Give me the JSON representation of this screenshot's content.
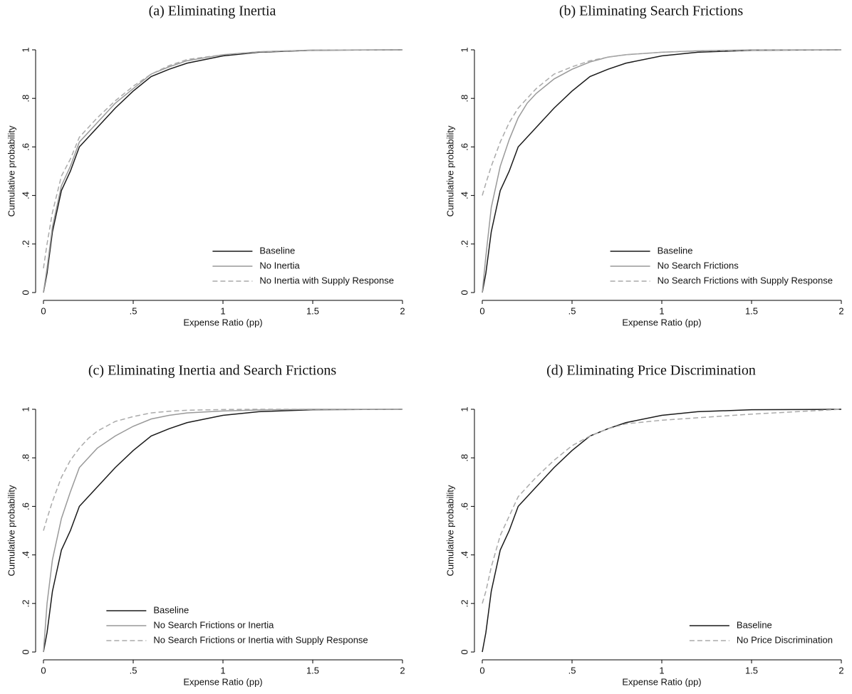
{
  "chart_data": [
    {
      "type": "line",
      "title": "(a) Eliminating Inertia",
      "x_label": "Expense Ratio (pp)",
      "y_label": "Cumulative probability",
      "x": [
        0,
        0.02,
        0.05,
        0.1,
        0.15,
        0.2,
        0.25,
        0.3,
        0.4,
        0.5,
        0.6,
        0.7,
        0.8,
        1.0,
        1.2,
        1.5,
        2.0
      ],
      "series": [
        {
          "name": "Baseline",
          "color": "#1a1a1a",
          "line_style": "solid",
          "values": [
            0,
            0.08,
            0.25,
            0.42,
            0.5,
            0.6,
            0.64,
            0.68,
            0.76,
            0.83,
            0.89,
            0.92,
            0.945,
            0.975,
            0.99,
            0.998,
            1
          ]
        },
        {
          "name": "No Inertia",
          "color": "#999999",
          "line_style": "solid",
          "values": [
            0,
            0.1,
            0.27,
            0.44,
            0.52,
            0.62,
            0.66,
            0.7,
            0.78,
            0.84,
            0.9,
            0.93,
            0.955,
            0.98,
            0.992,
            0.999,
            1
          ]
        },
        {
          "name": "No Inertia with Supply Response",
          "color": "#aaaaaa",
          "line_style": "dashed",
          "values": [
            0.1,
            0.2,
            0.33,
            0.48,
            0.55,
            0.64,
            0.68,
            0.72,
            0.79,
            0.85,
            0.9,
            0.935,
            0.96,
            0.98,
            0.992,
            0.999,
            1
          ]
        }
      ],
      "xlim": [
        0,
        2
      ],
      "xticks": [
        0,
        {
          "value": 0.5,
          "label": ".5"
        },
        1,
        1.5,
        2
      ],
      "ylim": [
        0,
        1
      ],
      "yticks": [
        0,
        {
          "value": 0.2,
          "label": ".2"
        },
        {
          "value": 0.4,
          "label": ".4"
        },
        {
          "value": 0.6,
          "label": ".6"
        },
        {
          "value": 0.8,
          "label": ".8"
        },
        1
      ],
      "legend": "lower right"
    },
    {
      "type": "line",
      "title": "(b) Eliminating Search Frictions",
      "x_label": "Expense Ratio (pp)",
      "y_label": "Cumulative probability",
      "x": [
        0,
        0.02,
        0.05,
        0.1,
        0.15,
        0.2,
        0.25,
        0.3,
        0.4,
        0.5,
        0.6,
        0.7,
        0.8,
        1.0,
        1.2,
        1.5,
        2.0
      ],
      "series": [
        {
          "name": "Baseline",
          "color": "#1a1a1a",
          "line_style": "solid",
          "values": [
            0,
            0.08,
            0.25,
            0.42,
            0.5,
            0.6,
            0.64,
            0.68,
            0.76,
            0.83,
            0.89,
            0.92,
            0.945,
            0.975,
            0.99,
            0.998,
            1
          ]
        },
        {
          "name": "No Search Frictions",
          "color": "#999999",
          "line_style": "solid",
          "values": [
            0,
            0.15,
            0.35,
            0.52,
            0.63,
            0.72,
            0.78,
            0.82,
            0.88,
            0.92,
            0.95,
            0.97,
            0.98,
            0.99,
            0.996,
            1,
            1
          ]
        },
        {
          "name": "No Search Frictions with Supply Response",
          "color": "#aaaaaa",
          "line_style": "dashed",
          "values": [
            0.4,
            0.45,
            0.52,
            0.62,
            0.7,
            0.76,
            0.8,
            0.84,
            0.9,
            0.93,
            0.955,
            0.97,
            0.98,
            0.99,
            0.995,
            0.999,
            1
          ]
        }
      ],
      "xlim": [
        0,
        2
      ],
      "xticks": [
        0,
        {
          "value": 0.5,
          "label": ".5"
        },
        1,
        1.5,
        2
      ],
      "ylim": [
        0,
        1
      ],
      "yticks": [
        0,
        {
          "value": 0.2,
          "label": ".2"
        },
        {
          "value": 0.4,
          "label": ".4"
        },
        {
          "value": 0.6,
          "label": ".6"
        },
        {
          "value": 0.8,
          "label": ".8"
        },
        1
      ],
      "legend": "lower right"
    },
    {
      "type": "line",
      "title": "(c) Eliminating Inertia and Search Frictions",
      "x_label": "Expense Ratio (pp)",
      "y_label": "Cumulative probability",
      "x": [
        0,
        0.02,
        0.05,
        0.1,
        0.15,
        0.2,
        0.25,
        0.3,
        0.4,
        0.5,
        0.6,
        0.7,
        0.8,
        1.0,
        1.2,
        1.5,
        2.0
      ],
      "series": [
        {
          "name": "Baseline",
          "color": "#1a1a1a",
          "line_style": "solid",
          "values": [
            0,
            0.08,
            0.25,
            0.42,
            0.5,
            0.6,
            0.64,
            0.68,
            0.76,
            0.83,
            0.89,
            0.92,
            0.945,
            0.975,
            0.99,
            0.998,
            1
          ]
        },
        {
          "name": "No Search Frictions or Inertia",
          "color": "#999999",
          "line_style": "solid",
          "values": [
            0,
            0.2,
            0.38,
            0.55,
            0.66,
            0.76,
            0.8,
            0.84,
            0.89,
            0.93,
            0.96,
            0.975,
            0.985,
            0.993,
            0.997,
            1,
            1
          ]
        },
        {
          "name": "No Search Frictions or Inertia with Supply Response",
          "color": "#aaaaaa",
          "line_style": "dashed",
          "values": [
            0.5,
            0.55,
            0.62,
            0.72,
            0.79,
            0.84,
            0.88,
            0.91,
            0.95,
            0.97,
            0.985,
            0.992,
            0.996,
            0.999,
            1,
            1,
            1
          ]
        }
      ],
      "xlim": [
        0,
        2
      ],
      "xticks": [
        0,
        {
          "value": 0.5,
          "label": ".5"
        },
        1,
        1.5,
        2
      ],
      "ylim": [
        0,
        1
      ],
      "yticks": [
        0,
        {
          "value": 0.2,
          "label": ".2"
        },
        {
          "value": 0.4,
          "label": ".4"
        },
        {
          "value": 0.6,
          "label": ".6"
        },
        {
          "value": 0.8,
          "label": ".8"
        },
        1
      ],
      "legend": "lower center"
    },
    {
      "type": "line",
      "title": "(d) Eliminating Price Discrimination",
      "x_label": "Expense Ratio (pp)",
      "y_label": "Cumulative probability",
      "x": [
        0,
        0.02,
        0.05,
        0.1,
        0.15,
        0.2,
        0.25,
        0.3,
        0.4,
        0.5,
        0.6,
        0.7,
        0.8,
        1.0,
        1.2,
        1.5,
        2.0
      ],
      "series": [
        {
          "name": "Baseline",
          "color": "#1a1a1a",
          "line_style": "solid",
          "values": [
            0,
            0.08,
            0.25,
            0.42,
            0.5,
            0.6,
            0.64,
            0.68,
            0.76,
            0.83,
            0.89,
            0.92,
            0.945,
            0.975,
            0.99,
            0.998,
            1
          ]
        },
        {
          "name": "No Price Discrimination",
          "color": "#aaaaaa",
          "line_style": "dashed",
          "values": [
            0.2,
            0.25,
            0.35,
            0.48,
            0.56,
            0.64,
            0.68,
            0.72,
            0.79,
            0.85,
            0.89,
            0.92,
            0.94,
            0.955,
            0.965,
            0.98,
            1
          ]
        }
      ],
      "xlim": [
        0,
        2
      ],
      "xticks": [
        0,
        {
          "value": 0.5,
          "label": ".5"
        },
        1,
        1.5,
        2
      ],
      "ylim": [
        0,
        1
      ],
      "yticks": [
        0,
        {
          "value": 0.2,
          "label": ".2"
        },
        {
          "value": 0.4,
          "label": ".4"
        },
        {
          "value": 0.6,
          "label": ".6"
        },
        {
          "value": 0.8,
          "label": ".8"
        },
        1
      ],
      "legend": "lower right"
    }
  ]
}
